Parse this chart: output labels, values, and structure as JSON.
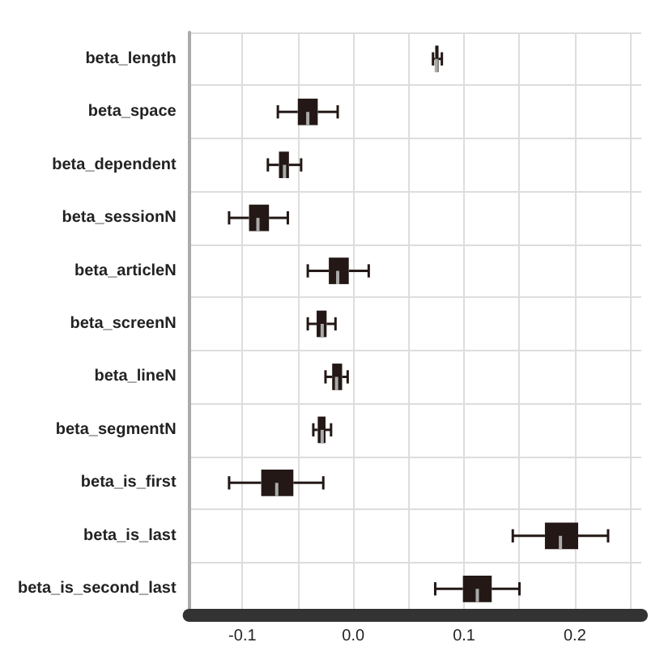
{
  "chart_data": {
    "type": "box",
    "orientation": "horizontal",
    "categories": [
      "beta_length",
      "beta_space",
      "beta_dependent",
      "beta_sessionN",
      "beta_articleN",
      "beta_screenN",
      "beta_lineN",
      "beta_segmentN",
      "beta_is_first",
      "beta_is_last",
      "beta_is_second_last"
    ],
    "boxes": [
      {
        "low": 0.072,
        "q1": 0.074,
        "median": 0.075,
        "q3": 0.077,
        "high": 0.08
      },
      {
        "low": -0.068,
        "q1": -0.05,
        "median": -0.041,
        "q3": -0.032,
        "high": -0.014
      },
      {
        "low": -0.077,
        "q1": -0.067,
        "median": -0.062,
        "q3": -0.058,
        "high": -0.047
      },
      {
        "low": -0.112,
        "q1": -0.094,
        "median": -0.086,
        "q3": -0.076,
        "high": -0.059
      },
      {
        "low": -0.041,
        "q1": -0.022,
        "median": -0.014,
        "q3": -0.004,
        "high": 0.014
      },
      {
        "low": -0.041,
        "q1": -0.033,
        "median": -0.028,
        "q3": -0.024,
        "high": -0.016
      },
      {
        "low": -0.025,
        "q1": -0.019,
        "median": -0.015,
        "q3": -0.01,
        "high": -0.005
      },
      {
        "low": -0.036,
        "q1": -0.032,
        "median": -0.028,
        "q3": -0.025,
        "high": -0.02
      },
      {
        "low": -0.112,
        "q1": -0.083,
        "median": -0.069,
        "q3": -0.054,
        "high": -0.027
      },
      {
        "low": 0.144,
        "q1": 0.173,
        "median": 0.187,
        "q3": 0.203,
        "high": 0.23
      },
      {
        "low": 0.074,
        "q1": 0.099,
        "median": 0.112,
        "q3": 0.125,
        "high": 0.15
      }
    ],
    "color": "#231815",
    "xlim": [
      -0.148,
      0.26
    ],
    "xticks": [
      {
        "value": -0.1,
        "label": "-0.1"
      },
      {
        "value": -0.05,
        "label": null
      },
      {
        "value": 0,
        "label": "0.0"
      },
      {
        "value": 0.05,
        "label": null
      },
      {
        "value": 0.1,
        "label": "0.1"
      },
      {
        "value": 0.15,
        "label": null
      },
      {
        "value": 0.2,
        "label": "0.2"
      },
      {
        "value": 0.25,
        "label": null
      }
    ],
    "grid": true
  }
}
